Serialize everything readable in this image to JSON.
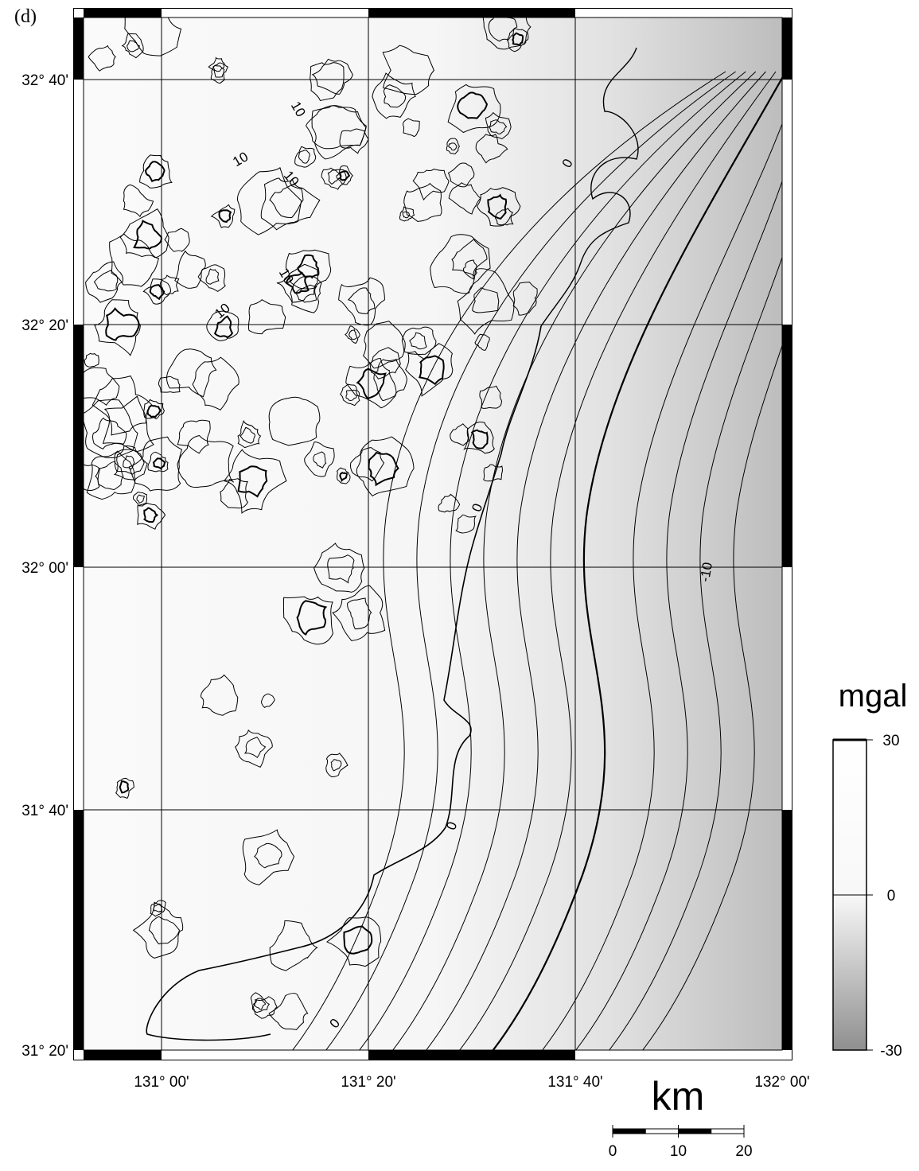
{
  "panel_label": "(d)",
  "latitude_labels": [
    "32° 40'",
    "32° 20'",
    "32° 00'",
    "31° 40'",
    "31° 20'"
  ],
  "longitude_labels": [
    "131° 00'",
    "131° 20'",
    "131° 40'",
    "132° 00'"
  ],
  "contour_labels": [
    "10",
    "10",
    "10",
    "10",
    "10",
    "0",
    "0",
    "0",
    "0",
    "-10"
  ],
  "colorbar": {
    "title": "mgal",
    "range": [
      -30,
      30
    ],
    "ticks": [
      30,
      0,
      -30
    ]
  },
  "scale_bar": {
    "title": "km",
    "range": [
      0,
      20
    ],
    "ticks": [
      0,
      10,
      20
    ]
  }
}
